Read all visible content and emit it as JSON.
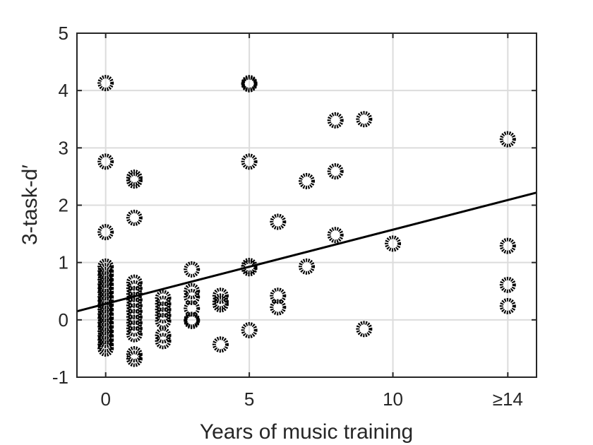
{
  "chart_data": {
    "type": "scatter",
    "title": "",
    "xlabel": "Years of music training",
    "ylabel": "3-task-d′",
    "xlim": [
      -1,
      15
    ],
    "ylim": [
      -1,
      5
    ],
    "xticks": [
      {
        "value": 0,
        "label": "0"
      },
      {
        "value": 5,
        "label": "5"
      },
      {
        "value": 10,
        "label": "10"
      },
      {
        "value": 14,
        "label": "≥14"
      }
    ],
    "yticks": [
      {
        "value": -1,
        "label": "-1"
      },
      {
        "value": 0,
        "label": "0"
      },
      {
        "value": 1,
        "label": "1"
      },
      {
        "value": 2,
        "label": "2"
      },
      {
        "value": 3,
        "label": "3"
      },
      {
        "value": 4,
        "label": "4"
      },
      {
        "value": 5,
        "label": "5"
      }
    ],
    "grid": true,
    "marker": "circle",
    "marker_color": "#000000",
    "points": [
      {
        "x": 0,
        "y": 4.13
      },
      {
        "x": 0,
        "y": 2.76
      },
      {
        "x": 0,
        "y": 1.53
      },
      {
        "x": 0,
        "y": 0.93
      },
      {
        "x": 0,
        "y": 0.85
      },
      {
        "x": 0,
        "y": 0.78
      },
      {
        "x": 0,
        "y": 0.7
      },
      {
        "x": 0,
        "y": 0.62
      },
      {
        "x": 0,
        "y": 0.55
      },
      {
        "x": 0,
        "y": 0.48
      },
      {
        "x": 0,
        "y": 0.4
      },
      {
        "x": 0,
        "y": 0.33
      },
      {
        "x": 0,
        "y": 0.26
      },
      {
        "x": 0,
        "y": 0.18
      },
      {
        "x": 0,
        "y": 0.1
      },
      {
        "x": 0,
        "y": 0.03
      },
      {
        "x": 0,
        "y": -0.05
      },
      {
        "x": 0,
        "y": -0.12
      },
      {
        "x": 0,
        "y": -0.2
      },
      {
        "x": 0,
        "y": -0.28
      },
      {
        "x": 0,
        "y": -0.35
      },
      {
        "x": 0,
        "y": -0.43
      },
      {
        "x": 0,
        "y": -0.5
      },
      {
        "x": 1,
        "y": 2.48
      },
      {
        "x": 1,
        "y": 2.43
      },
      {
        "x": 1,
        "y": 1.78
      },
      {
        "x": 1,
        "y": 0.65
      },
      {
        "x": 1,
        "y": 0.55
      },
      {
        "x": 1,
        "y": 0.45
      },
      {
        "x": 1,
        "y": 0.35
      },
      {
        "x": 1,
        "y": 0.25
      },
      {
        "x": 1,
        "y": 0.15
      },
      {
        "x": 1,
        "y": 0.05
      },
      {
        "x": 1,
        "y": -0.05
      },
      {
        "x": 1,
        "y": -0.15
      },
      {
        "x": 1,
        "y": -0.25
      },
      {
        "x": 1,
        "y": -0.6
      },
      {
        "x": 1,
        "y": -0.68
      },
      {
        "x": 2,
        "y": 0.38
      },
      {
        "x": 2,
        "y": 0.28
      },
      {
        "x": 2,
        "y": 0.18
      },
      {
        "x": 2,
        "y": 0.08
      },
      {
        "x": 2,
        "y": -0.02
      },
      {
        "x": 2,
        "y": -0.27
      },
      {
        "x": 2,
        "y": -0.37
      },
      {
        "x": 3,
        "y": 0.88
      },
      {
        "x": 3,
        "y": 0.5
      },
      {
        "x": 3,
        "y": 0.4
      },
      {
        "x": 3,
        "y": 0.2
      },
      {
        "x": 3,
        "y": 0.0
      },
      {
        "x": 3,
        "y": -0.02
      },
      {
        "x": 4,
        "y": 0.42
      },
      {
        "x": 4,
        "y": 0.32
      },
      {
        "x": 4,
        "y": 0.27
      },
      {
        "x": 4,
        "y": -0.43
      },
      {
        "x": 5,
        "y": 4.13
      },
      {
        "x": 5,
        "y": 4.11
      },
      {
        "x": 5,
        "y": 2.76
      },
      {
        "x": 5,
        "y": 0.94
      },
      {
        "x": 5,
        "y": 0.9
      },
      {
        "x": 5,
        "y": -0.18
      },
      {
        "x": 6,
        "y": 1.71
      },
      {
        "x": 6,
        "y": 0.42
      },
      {
        "x": 6,
        "y": 0.22
      },
      {
        "x": 7,
        "y": 2.42
      },
      {
        "x": 7,
        "y": 0.93
      },
      {
        "x": 8,
        "y": 3.48
      },
      {
        "x": 8,
        "y": 2.59
      },
      {
        "x": 8,
        "y": 1.48
      },
      {
        "x": 9,
        "y": 3.5
      },
      {
        "x": 9,
        "y": -0.16
      },
      {
        "x": 10,
        "y": 1.33
      },
      {
        "x": 14,
        "y": 3.15
      },
      {
        "x": 14,
        "y": 1.29
      },
      {
        "x": 14,
        "y": 0.61
      },
      {
        "x": 14,
        "y": 0.24
      }
    ],
    "fit_line": {
      "x": [
        -1,
        15
      ],
      "y": [
        0.15,
        2.22
      ],
      "color": "#000000"
    }
  }
}
